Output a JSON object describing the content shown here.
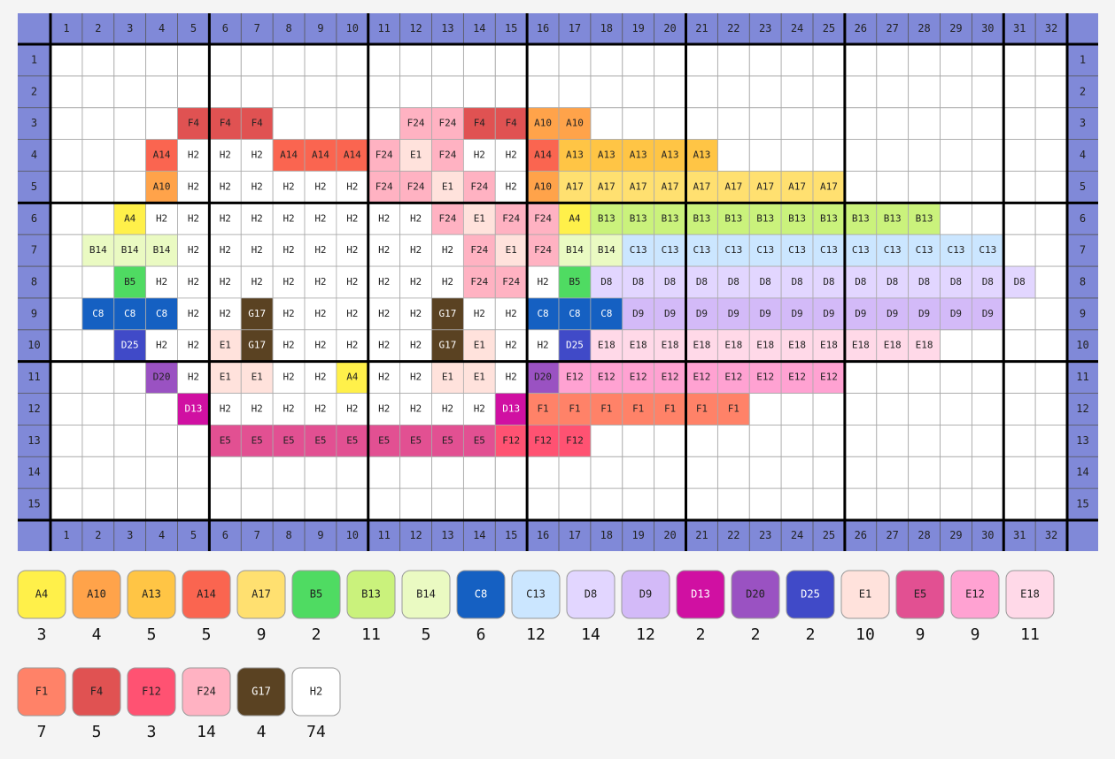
{
  "grid": {
    "columns": [
      1,
      2,
      3,
      4,
      5,
      6,
      7,
      8,
      9,
      10,
      11,
      12,
      13,
      14,
      15,
      16,
      17,
      18,
      19,
      20,
      21,
      22,
      23,
      24,
      25,
      26,
      27,
      28,
      29,
      30,
      31,
      32
    ],
    "row_labels": [
      1,
      2,
      3,
      4,
      5,
      6,
      7,
      8,
      9,
      10,
      11,
      12,
      13,
      14,
      15
    ],
    "rows": [
      [
        null,
        null,
        null,
        null,
        null,
        null,
        null,
        null,
        null,
        null,
        null,
        null,
        null,
        null,
        null,
        null,
        null,
        null,
        null,
        null,
        null,
        null,
        null,
        null,
        null,
        null,
        null,
        null,
        null,
        null,
        null,
        null
      ],
      [
        null,
        null,
        null,
        null,
        null,
        null,
        null,
        null,
        null,
        null,
        null,
        null,
        null,
        null,
        null,
        null,
        null,
        null,
        null,
        null,
        null,
        null,
        null,
        null,
        null,
        null,
        null,
        null,
        null,
        null,
        null,
        null
      ],
      [
        null,
        null,
        null,
        null,
        "F4",
        "F4",
        "F4",
        null,
        null,
        null,
        null,
        "F24",
        "F24",
        "F4",
        "F4",
        "A10",
        "A10",
        null,
        null,
        null,
        null,
        null,
        null,
        null,
        null,
        null,
        null,
        null,
        null,
        null,
        null,
        null
      ],
      [
        null,
        null,
        null,
        "A14",
        "H2",
        "H2",
        "H2",
        "A14",
        "A14",
        "A14",
        "F24",
        "E1",
        "F24",
        "H2",
        "H2",
        "A14",
        "A13",
        "A13",
        "A13",
        "A13",
        "A13",
        null,
        null,
        null,
        null,
        null,
        null,
        null,
        null,
        null,
        null,
        null
      ],
      [
        null,
        null,
        null,
        "A10",
        "H2",
        "H2",
        "H2",
        "H2",
        "H2",
        "H2",
        "F24",
        "F24",
        "E1",
        "F24",
        "H2",
        "A10",
        "A17",
        "A17",
        "A17",
        "A17",
        "A17",
        "A17",
        "A17",
        "A17",
        "A17",
        null,
        null,
        null,
        null,
        null,
        null,
        null
      ],
      [
        null,
        null,
        "A4",
        "H2",
        "H2",
        "H2",
        "H2",
        "H2",
        "H2",
        "H2",
        "H2",
        "H2",
        "F24",
        "E1",
        "F24",
        "F24",
        "A4",
        "B13",
        "B13",
        "B13",
        "B13",
        "B13",
        "B13",
        "B13",
        "B13",
        "B13",
        "B13",
        "B13",
        null,
        null,
        null,
        null
      ],
      [
        null,
        "B14",
        "B14",
        "B14",
        "H2",
        "H2",
        "H2",
        "H2",
        "H2",
        "H2",
        "H2",
        "H2",
        "H2",
        "F24",
        "E1",
        "F24",
        "B14",
        "B14",
        "C13",
        "C13",
        "C13",
        "C13",
        "C13",
        "C13",
        "C13",
        "C13",
        "C13",
        "C13",
        "C13",
        "C13",
        null,
        null
      ],
      [
        null,
        null,
        "B5",
        "H2",
        "H2",
        "H2",
        "H2",
        "H2",
        "H2",
        "H2",
        "H2",
        "H2",
        "H2",
        "F24",
        "F24",
        "H2",
        "B5",
        "D8",
        "D8",
        "D8",
        "D8",
        "D8",
        "D8",
        "D8",
        "D8",
        "D8",
        "D8",
        "D8",
        "D8",
        "D8",
        "D8",
        null
      ],
      [
        null,
        "C8",
        "C8",
        "C8",
        "H2",
        "H2",
        "G17",
        "H2",
        "H2",
        "H2",
        "H2",
        "H2",
        "G17",
        "H2",
        "H2",
        "C8",
        "C8",
        "C8",
        "D9",
        "D9",
        "D9",
        "D9",
        "D9",
        "D9",
        "D9",
        "D9",
        "D9",
        "D9",
        "D9",
        "D9",
        null,
        null
      ],
      [
        null,
        null,
        "D25",
        "H2",
        "H2",
        "E1",
        "G17",
        "H2",
        "H2",
        "H2",
        "H2",
        "H2",
        "G17",
        "E1",
        "H2",
        "H2",
        "D25",
        "E18",
        "E18",
        "E18",
        "E18",
        "E18",
        "E18",
        "E18",
        "E18",
        "E18",
        "E18",
        "E18",
        null,
        null,
        null,
        null
      ],
      [
        null,
        null,
        null,
        "D20",
        "H2",
        "E1",
        "E1",
        "H2",
        "H2",
        "A4",
        "H2",
        "H2",
        "E1",
        "E1",
        "H2",
        "D20",
        "E12",
        "E12",
        "E12",
        "E12",
        "E12",
        "E12",
        "E12",
        "E12",
        "E12",
        null,
        null,
        null,
        null,
        null,
        null,
        null
      ],
      [
        null,
        null,
        null,
        null,
        "D13",
        "H2",
        "H2",
        "H2",
        "H2",
        "H2",
        "H2",
        "H2",
        "H2",
        "H2",
        "D13",
        "F1",
        "F1",
        "F1",
        "F1",
        "F1",
        "F1",
        "F1",
        null,
        null,
        null,
        null,
        null,
        null,
        null,
        null,
        null,
        null
      ],
      [
        null,
        null,
        null,
        null,
        null,
        "E5",
        "E5",
        "E5",
        "E5",
        "E5",
        "E5",
        "E5",
        "E5",
        "E5",
        "F12",
        "F12",
        "F12",
        null,
        null,
        null,
        null,
        null,
        null,
        null,
        null,
        null,
        null,
        null,
        null,
        null,
        null,
        null
      ],
      [
        null,
        null,
        null,
        null,
        null,
        null,
        null,
        null,
        null,
        null,
        null,
        null,
        null,
        null,
        null,
        null,
        null,
        null,
        null,
        null,
        null,
        null,
        null,
        null,
        null,
        null,
        null,
        null,
        null,
        null,
        null,
        null
      ],
      [
        null,
        null,
        null,
        null,
        null,
        null,
        null,
        null,
        null,
        null,
        null,
        null,
        null,
        null,
        null,
        null,
        null,
        null,
        null,
        null,
        null,
        null,
        null,
        null,
        null,
        null,
        null,
        null,
        null,
        null,
        null,
        null
      ]
    ]
  },
  "palette": [
    {
      "code": "A4",
      "count": 3,
      "color": "#fff04a"
    },
    {
      "code": "A10",
      "count": 4,
      "color": "#ffa34a"
    },
    {
      "code": "A13",
      "count": 5,
      "color": "#ffc545"
    },
    {
      "code": "A14",
      "count": 5,
      "color": "#fa6550"
    },
    {
      "code": "A17",
      "count": 9,
      "color": "#ffe070"
    },
    {
      "code": "B5",
      "count": 2,
      "color": "#4fdb62"
    },
    {
      "code": "B13",
      "count": 11,
      "color": "#caf27c"
    },
    {
      "code": "B14",
      "count": 5,
      "color": "#eafac2"
    },
    {
      "code": "C8",
      "count": 6,
      "color": "#1560c2"
    },
    {
      "code": "C13",
      "count": 12,
      "color": "#cbe6ff"
    },
    {
      "code": "D8",
      "count": 14,
      "color": "#e2d6ff"
    },
    {
      "code": "D9",
      "count": 12,
      "color": "#d3baf8"
    },
    {
      "code": "D13",
      "count": 2,
      "color": "#d010a2"
    },
    {
      "code": "D20",
      "count": 2,
      "color": "#9a52c2"
    },
    {
      "code": "D25",
      "count": 2,
      "color": "#404ac8"
    },
    {
      "code": "E1",
      "count": 10,
      "color": "#ffe2dc"
    },
    {
      "code": "E5",
      "count": 9,
      "color": "#e25092"
    },
    {
      "code": "E12",
      "count": 9,
      "color": "#ffa2d2"
    },
    {
      "code": "E18",
      "count": 11,
      "color": "#ffd9e8"
    },
    {
      "code": "F1",
      "count": 7,
      "color": "#ff8268"
    },
    {
      "code": "F4",
      "count": 5,
      "color": "#e05252"
    },
    {
      "code": "F12",
      "count": 3,
      "color": "#ff5272"
    },
    {
      "code": "F24",
      "count": 14,
      "color": "#ffb2c2"
    },
    {
      "code": "G17",
      "count": 4,
      "color": "#5a4222"
    },
    {
      "code": "H2",
      "count": 74,
      "color": "#ffffff"
    }
  ]
}
